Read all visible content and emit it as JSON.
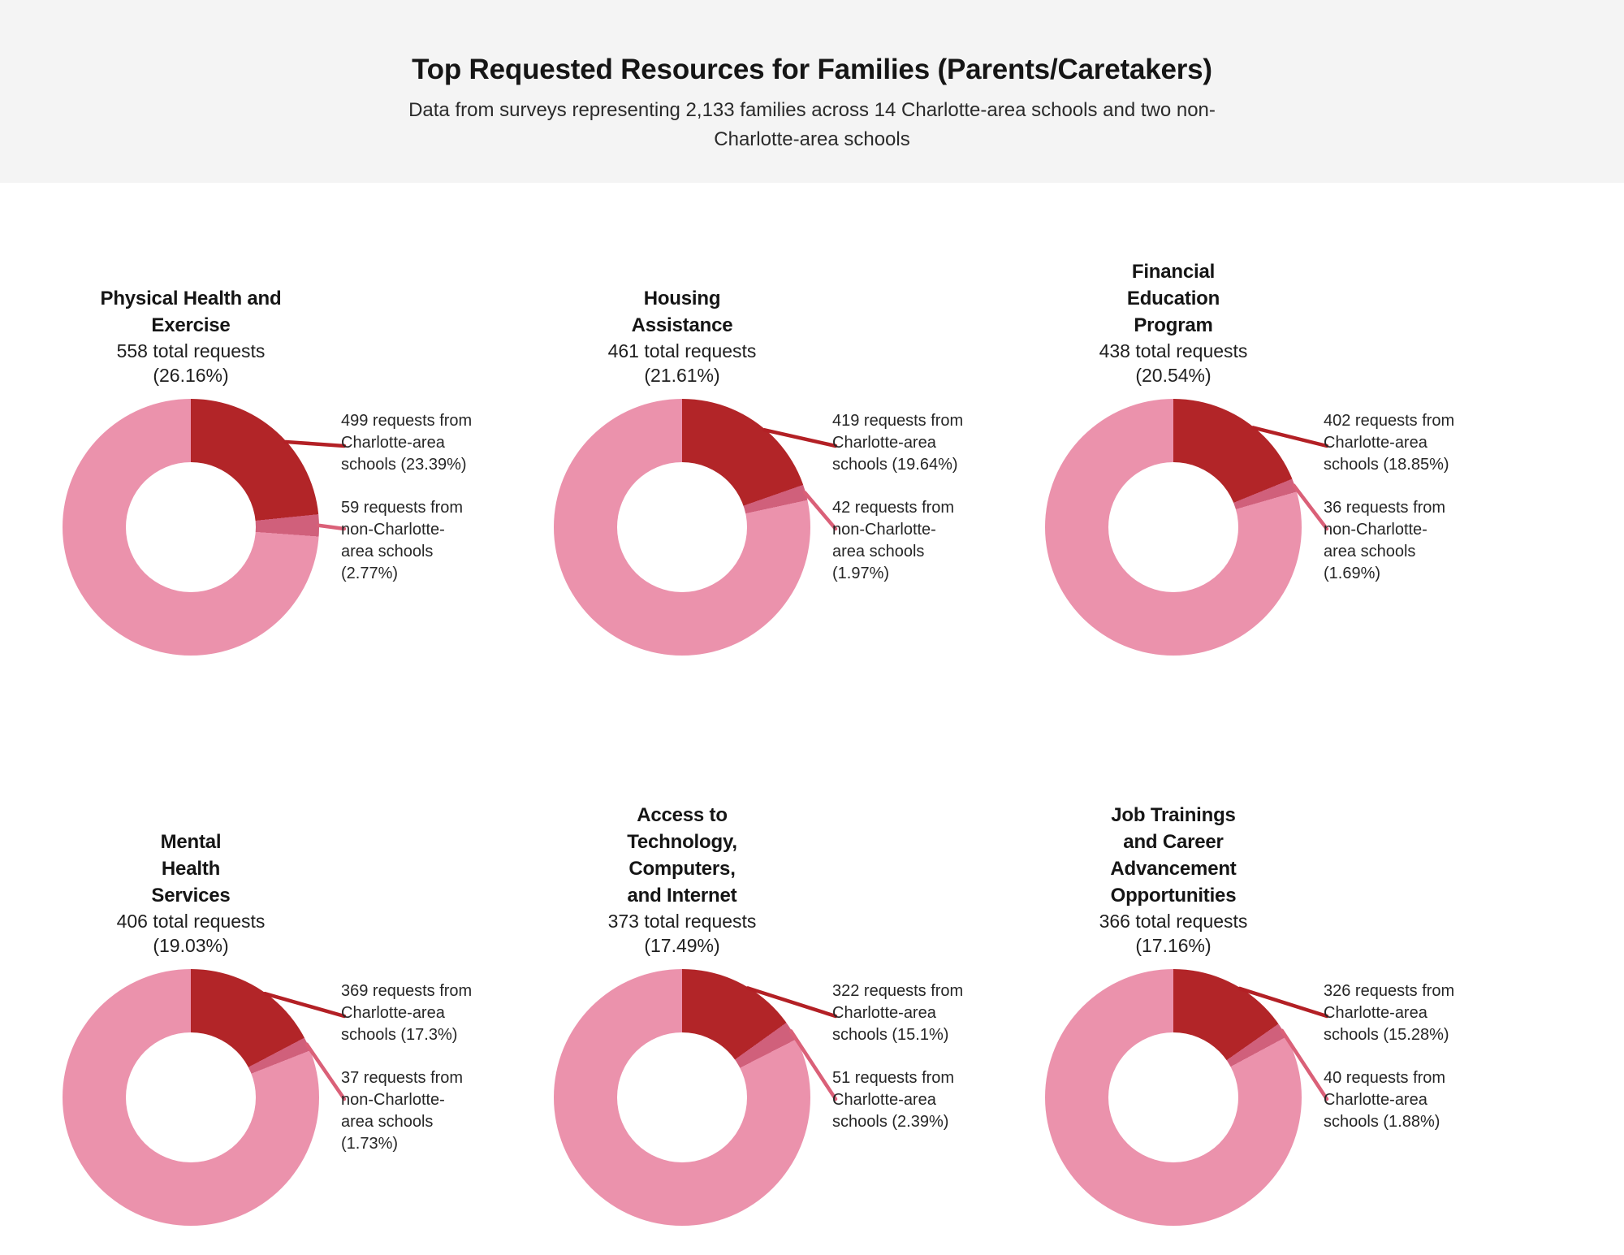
{
  "header": {
    "title": "Top Requested Resources for Families (Parents/Caretakers)",
    "subtitle": "Data from surveys representing 2,133 families across 14 Charlotte-area schools and two non-\nCharlotte-area schools"
  },
  "colors": {
    "charlotte_slice": "#b22528",
    "non_charlotte_slice": "#d0607b",
    "remainder_slice": "#eb92ac",
    "leader_line_1": "#b32025",
    "leader_line_2": "#da6078",
    "banner_background": "#f4f4f4",
    "text": "#1c1c1c"
  },
  "chart_data": [
    {
      "type": "donut",
      "title": "Physical Health and\nExercise",
      "total_requests_label": "558 total requests",
      "total_pct_label": "(26.16%)",
      "total": 558,
      "total_pct": 26.16,
      "slices": [
        {
          "value": 499,
          "pct": 23.39,
          "label": "499 requests from\nCharlotte-area\nschools (23.39%)"
        },
        {
          "value": 59,
          "pct": 2.77,
          "label": "59 requests from\nnon-Charlotte-\narea schools\n(2.77%)"
        }
      ]
    },
    {
      "type": "donut",
      "title": "Housing\nAssistance",
      "total_requests_label": "461 total requests",
      "total_pct_label": "(21.61%)",
      "total": 461,
      "total_pct": 21.61,
      "slices": [
        {
          "value": 419,
          "pct": 19.64,
          "label": "419 requests from\nCharlotte-area\nschools (19.64%)"
        },
        {
          "value": 42,
          "pct": 1.97,
          "label": "42 requests from\nnon-Charlotte-\narea schools\n(1.97%)"
        }
      ]
    },
    {
      "type": "donut",
      "title": "Financial\nEducation\nProgram",
      "total_requests_label": "438 total requests",
      "total_pct_label": "(20.54%)",
      "total": 438,
      "total_pct": 20.54,
      "slices": [
        {
          "value": 402,
          "pct": 18.85,
          "label": "402 requests from\nCharlotte-area\nschools (18.85%)"
        },
        {
          "value": 36,
          "pct": 1.69,
          "label": "36 requests from\nnon-Charlotte-\narea schools\n(1.69%)"
        }
      ]
    },
    {
      "type": "donut",
      "title": "Mental\nHealth\nServices",
      "total_requests_label": "406 total requests",
      "total_pct_label": "(19.03%)",
      "total": 406,
      "total_pct": 19.03,
      "slices": [
        {
          "value": 369,
          "pct": 17.3,
          "label": "369 requests from\nCharlotte-area\nschools (17.3%)"
        },
        {
          "value": 37,
          "pct": 1.73,
          "label": "37 requests from\nnon-Charlotte-\narea schools\n(1.73%)"
        }
      ]
    },
    {
      "type": "donut",
      "title": "Access to\nTechnology,\nComputers,\nand Internet",
      "total_requests_label": "373 total requests",
      "total_pct_label": "(17.49%)",
      "total": 373,
      "total_pct": 17.49,
      "slices": [
        {
          "value": 322,
          "pct": 15.1,
          "label": "322 requests from\nCharlotte-area\nschools (15.1%)"
        },
        {
          "value": 51,
          "pct": 2.39,
          "label": "51 requests from\nCharlotte-area\nschools (2.39%)"
        }
      ]
    },
    {
      "type": "donut",
      "title": "Job Trainings\nand Career\nAdvancement\nOpportunities",
      "total_requests_label": "366 total requests",
      "total_pct_label": "(17.16%)",
      "total": 366,
      "total_pct": 17.16,
      "slices": [
        {
          "value": 326,
          "pct": 15.28,
          "label": "326 requests from\nCharlotte-area\nschools (15.28%)"
        },
        {
          "value": 40,
          "pct": 1.88,
          "label": "40 requests from\nCharlotte-area\nschools (1.88%)"
        }
      ]
    }
  ]
}
